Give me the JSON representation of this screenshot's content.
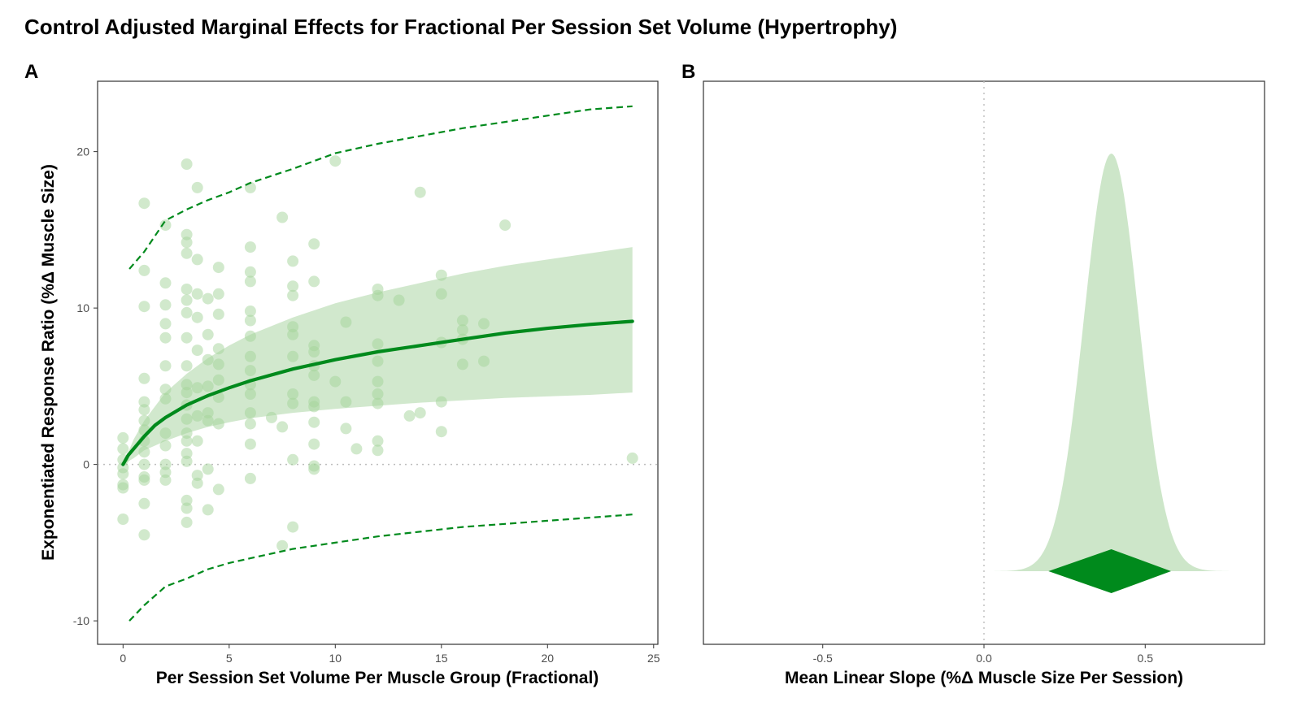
{
  "figure": {
    "title": "Control Adjusted Marginal Effects for Fractional Per Session Set Volume (Hypertrophy)"
  },
  "colors": {
    "accent": "#008a1c",
    "band": "#b8dbb2",
    "points": "#a3d39a",
    "zero_line": "#bdbdbd",
    "frame": "#333333"
  },
  "chart_data": [
    {
      "panel": "A",
      "type": "scatter",
      "xlabel": "Per Session Set Volume Per Muscle Group (Fractional)",
      "ylabel": "Exponentiated Response Ratio (%Δ Muscle Size)",
      "xlim": [
        -1.2,
        25.2
      ],
      "ylim": [
        -11.5,
        24.5
      ],
      "x_ticks": [
        0,
        5,
        10,
        15,
        20,
        25
      ],
      "x_tick_labels": [
        "0",
        "5",
        "10",
        "15",
        "20",
        "25"
      ],
      "y_ticks": [
        -10,
        0,
        10,
        20
      ],
      "y_tick_labels": [
        "-10",
        "0",
        "10",
        "20"
      ],
      "grid": false,
      "reference_line_y": 0,
      "fit_line": {
        "x": [
          0,
          0.25,
          0.5,
          1,
          1.5,
          2,
          3,
          4,
          5,
          6,
          8,
          10,
          12,
          14,
          16,
          18,
          20,
          22,
          24
        ],
        "y": [
          0,
          0.6,
          1.0,
          1.8,
          2.5,
          3.0,
          3.8,
          4.4,
          4.9,
          5.35,
          6.1,
          6.7,
          7.2,
          7.6,
          8.0,
          8.4,
          8.7,
          8.95,
          9.15
        ]
      },
      "confidence_band": {
        "x": [
          0,
          0.5,
          1,
          2,
          3,
          4,
          5,
          6,
          8,
          10,
          12,
          14,
          16,
          18,
          20,
          22,
          24
        ],
        "lower": [
          0,
          0.4,
          0.9,
          1.5,
          2.0,
          2.4,
          2.7,
          2.95,
          3.3,
          3.55,
          3.75,
          3.95,
          4.1,
          4.25,
          4.35,
          4.45,
          4.6
        ],
        "upper": [
          0,
          1.6,
          2.8,
          4.6,
          5.8,
          6.8,
          7.6,
          8.3,
          9.4,
          10.3,
          11.0,
          11.6,
          12.2,
          12.7,
          13.1,
          13.5,
          13.9
        ]
      },
      "prediction_upper": {
        "x": [
          0.3,
          1,
          2,
          3,
          4,
          5,
          6,
          8,
          10,
          12,
          14,
          16,
          18,
          20,
          22,
          24
        ],
        "y": [
          12.5,
          13.6,
          15.6,
          16.3,
          16.9,
          17.4,
          18.0,
          18.9,
          19.9,
          20.5,
          21.0,
          21.5,
          21.9,
          22.3,
          22.7,
          22.9
        ]
      },
      "prediction_lower": {
        "x": [
          0.3,
          1,
          2,
          3,
          4,
          5,
          6,
          8,
          10,
          12,
          14,
          16,
          18,
          20,
          22,
          24
        ],
        "y": [
          -10.0,
          -9.0,
          -7.8,
          -7.3,
          -6.7,
          -6.3,
          -6.0,
          -5.4,
          -5.0,
          -4.6,
          -4.3,
          -4.0,
          -3.8,
          -3.6,
          -3.4,
          -3.2
        ]
      },
      "points": {
        "x": [
          0,
          0,
          0,
          0,
          0,
          0,
          0,
          0,
          1,
          1,
          1,
          1,
          1,
          1,
          1,
          1,
          1,
          1,
          1,
          1,
          1,
          1,
          1,
          2,
          2,
          2,
          2,
          2,
          2,
          2,
          2,
          2,
          2,
          2,
          2,
          2,
          3,
          3,
          3,
          3,
          3,
          3,
          3,
          3,
          3,
          3,
          3,
          3,
          3,
          3,
          3,
          3,
          3,
          3,
          3,
          3,
          3.5,
          3.5,
          3.5,
          3.5,
          3.5,
          3.5,
          3.5,
          3.5,
          3.5,
          3.5,
          4,
          4,
          4,
          4,
          4,
          4,
          4,
          4,
          4.5,
          4.5,
          4.5,
          4.5,
          4.5,
          4.5,
          4.5,
          4.5,
          4.5,
          6,
          6,
          6,
          6,
          6,
          6,
          6,
          6,
          6,
          6,
          6,
          6,
          6,
          6,
          6,
          7,
          7.5,
          7.5,
          7.5,
          8,
          8,
          8,
          8,
          8,
          8,
          8,
          8,
          8,
          8,
          9,
          9,
          9,
          9,
          9,
          9,
          9,
          9,
          9,
          9,
          9,
          9,
          10,
          10,
          10.5,
          10.5,
          10.5,
          11,
          12,
          12,
          12,
          12,
          12,
          12,
          12,
          12,
          12,
          13,
          13.5,
          14,
          14,
          15,
          15,
          15,
          15,
          15,
          16,
          16,
          16,
          16,
          17,
          17,
          18,
          24
        ],
        "y": [
          1.7,
          1.0,
          0.3,
          -0.2,
          -0.6,
          -1.3,
          -1.5,
          -3.5,
          16.7,
          12.4,
          10.1,
          5.5,
          4.0,
          3.5,
          2.8,
          2.2,
          1.5,
          0.8,
          0.0,
          -0.8,
          -1.0,
          -2.5,
          -4.5,
          15.3,
          11.6,
          10.2,
          9.0,
          8.1,
          6.3,
          4.8,
          4.2,
          2.0,
          1.2,
          0.0,
          -0.5,
          -1.0,
          19.2,
          14.7,
          14.2,
          13.5,
          11.2,
          10.5,
          9.7,
          8.1,
          6.3,
          5.1,
          4.6,
          3.8,
          2.9,
          2.0,
          1.5,
          0.7,
          0.2,
          -2.3,
          -2.8,
          -3.7,
          17.7,
          13.1,
          10.9,
          9.4,
          7.3,
          4.9,
          3.1,
          1.5,
          -0.7,
          -1.2,
          10.6,
          8.3,
          6.7,
          5.0,
          3.3,
          2.8,
          -0.3,
          -2.9,
          12.6,
          10.9,
          9.6,
          7.4,
          6.4,
          5.4,
          4.3,
          2.6,
          -1.6,
          17.7,
          13.9,
          12.3,
          11.7,
          9.8,
          9.2,
          8.2,
          6.9,
          6.0,
          5.1,
          4.5,
          3.3,
          2.6,
          1.3,
          -0.9,
          3.0,
          15.8,
          2.4,
          -5.2,
          13.0,
          11.4,
          10.8,
          8.8,
          8.3,
          6.9,
          4.5,
          3.9,
          0.3,
          -4.0,
          14.1,
          11.7,
          7.6,
          7.2,
          6.3,
          5.7,
          4.0,
          3.7,
          2.7,
          1.3,
          -0.1,
          -0.3,
          19.4,
          5.3,
          9.1,
          4.0,
          2.3,
          1.0,
          11.2,
          10.8,
          7.7,
          6.6,
          5.3,
          4.5,
          3.9,
          1.5,
          0.9,
          10.5,
          3.1,
          17.4,
          3.3,
          12.1,
          10.9,
          7.8,
          4.0,
          2.1,
          9.2,
          8.6,
          8.0,
          6.4,
          9.0,
          6.6,
          15.3,
          0.4
        ]
      }
    },
    {
      "panel": "B",
      "type": "area",
      "xlabel": "Mean Linear Slope (%Δ Muscle Size Per Session)",
      "ylabel": "",
      "xlim": [
        -0.87,
        0.87
      ],
      "x_ticks": [
        -0.5,
        0.0,
        0.5
      ],
      "x_tick_labels": [
        "-0.5",
        "0.0",
        "0.5"
      ],
      "reference_line_x": 0.0,
      "grid": false,
      "posterior_density": {
        "mean": 0.395,
        "sd": 0.085,
        "lower_bound": 0.0,
        "upper_bound": 0.78
      },
      "point_interval": {
        "estimate": 0.395,
        "lower": 0.2,
        "upper": 0.58
      }
    }
  ]
}
